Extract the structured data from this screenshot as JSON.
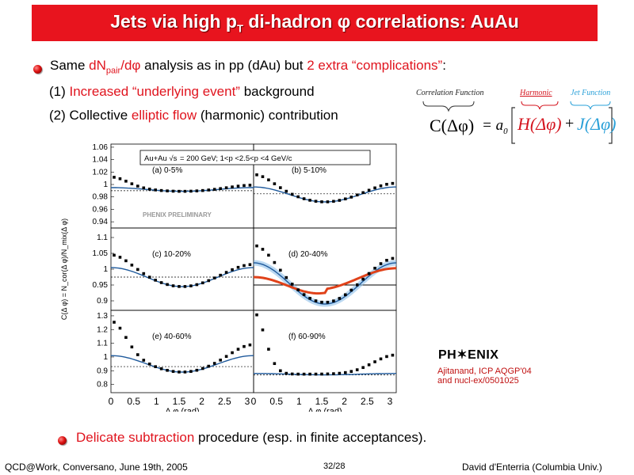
{
  "slide": {
    "title_main": "Jets via high p",
    "title_sub": "T",
    "title_rest": " di-hadron φ correlations: AuAu"
  },
  "bullet1": {
    "p1": "Same ",
    "p2": "dN",
    "p2sub": "pair",
    "p3": "/dφ",
    "p4": " analysis as in pp (dAu) but ",
    "p5": "2 extra “complications”",
    "p6": ":"
  },
  "item1": {
    "p1": "(1) ",
    "p2": "Increased “underlying event”",
    "p3": " background"
  },
  "item2": {
    "p1": "(2) Collective ",
    "p2": "elliptic flow",
    "p3": " (harmonic) contribution"
  },
  "equation": {
    "label_corr": "Correlation Function",
    "label_harm": "Harmonic",
    "label_jet": "Jet Function",
    "lhs": "C(Δφ)",
    "eq": "= a",
    "eq_sub": "0",
    "H": "H(Δφ)",
    "plus": "+",
    "J": "J(Δφ)"
  },
  "figure": {
    "legend": "Au+Au √s_NN = 200 GeV; 1<p_T,assoc^B <2.5<p_T,trig^A <4 GeV/c",
    "legend_a": "Au+Au ",
    "legend_b": "= 200 GeV; 1<p",
    "legend_c": "<2.5<p",
    "legend_d": "<4 GeV/c",
    "preliminary": "PHENIX PRELIMINARY",
    "ylabel": "C(Δ φ) = N_cor(Δ φ)/N_mix(Δ φ)",
    "xlabel": "Δ φ (rad)",
    "panels": [
      "(a) 0-5%",
      "(b) 5-10%",
      "(c) 10-20%",
      "(d) 20-40%",
      "(e) 40-60%",
      "(f) 60-90%"
    ],
    "row1_ticks": [
      "1.06",
      "1.04",
      "1.02",
      "1",
      "0.98",
      "0.96",
      "0.94"
    ],
    "row2_ticks": [
      "1.1",
      "1.05",
      "1",
      "0.95",
      "0.9"
    ],
    "row3_ticks": [
      "1.3",
      "1.2",
      "1.1",
      "1",
      "0.9",
      "0.8"
    ],
    "x_ticks_left": [
      "0",
      "0.5",
      "1",
      "1.5",
      "2",
      "2.5",
      "3"
    ],
    "x_ticks_right": [
      "0",
      "0.5",
      "1",
      "1.5",
      "2",
      "2.5",
      "3"
    ]
  },
  "phenix": {
    "logo": "PH✶ENIX",
    "ref1": "Ajitanand, ICP AQGP'04",
    "ref2": "and nucl-ex/0501025"
  },
  "bullet2": {
    "p1": "Delicate subtraction",
    "p2": " procedure (esp. in finite acceptances)."
  },
  "footer": {
    "left": "QCD@Work, Conversano, June 19th, 2005",
    "center": "32/28",
    "right": "David d'Enterria (Columbia Univ.)"
  },
  "colors": {
    "title_bg": "#e8141e",
    "accent_red": "#e0141e",
    "curve_blue": "#1f5a9c",
    "curve_red": "#e0421a"
  }
}
